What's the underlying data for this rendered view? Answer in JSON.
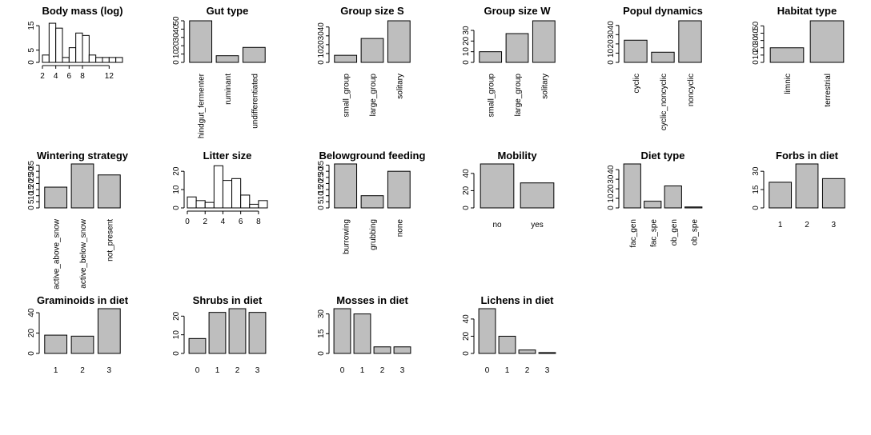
{
  "style": {
    "bar_fill": "#bebebe",
    "hist_fill": "#ffffff",
    "stroke": "#000000"
  },
  "chart_data": [
    {
      "type": "histogram",
      "title": "Body mass (log)",
      "xlim": [
        2,
        14
      ],
      "xticks": [
        2,
        4,
        6,
        8,
        12
      ],
      "ylim": [
        0,
        17
      ],
      "yticks": [
        0,
        5,
        15
      ],
      "bins": [
        2,
        3,
        4,
        5,
        6,
        7,
        8,
        9,
        10,
        11,
        12,
        13,
        14
      ],
      "values": [
        3,
        16,
        14,
        2,
        6,
        12,
        11,
        3,
        2,
        2,
        2,
        2
      ]
    },
    {
      "type": "bar",
      "title": "Gut type",
      "categories": [
        "hindgut_fermenter",
        "ruminant",
        "undifferentiated"
      ],
      "values": [
        50,
        8,
        18
      ],
      "ylim": [
        0,
        50
      ],
      "yticks": [
        0,
        10,
        20,
        30,
        40,
        50
      ],
      "label_orient": "vertical"
    },
    {
      "type": "bar",
      "title": "Group size S",
      "categories": [
        "small_group",
        "large_group",
        "solitary"
      ],
      "values": [
        8,
        27,
        47
      ],
      "ylim": [
        0,
        47
      ],
      "yticks": [
        0,
        10,
        20,
        30,
        40
      ],
      "label_orient": "vertical"
    },
    {
      "type": "bar",
      "title": "Group size W",
      "categories": [
        "small_group",
        "large_group",
        "solitary"
      ],
      "values": [
        10,
        27,
        39
      ],
      "ylim": [
        0,
        39
      ],
      "yticks": [
        0,
        10,
        20,
        30
      ],
      "label_orient": "vertical"
    },
    {
      "type": "bar",
      "title": "Popul dynamics",
      "categories": [
        "cyclic",
        "cyclic_noncyclic",
        "noncyclic"
      ],
      "values": [
        24,
        11,
        45
      ],
      "ylim": [
        0,
        45
      ],
      "yticks": [
        0,
        10,
        20,
        30,
        40
      ],
      "label_orient": "vertical"
    },
    {
      "type": "bar",
      "title": "Habitat type",
      "categories": [
        "limnic",
        "terrestrial"
      ],
      "values": [
        20,
        57
      ],
      "ylim": [
        0,
        57
      ],
      "yticks": [
        0,
        10,
        20,
        30,
        40,
        50
      ],
      "label_orient": "vertical"
    },
    {
      "type": "bar",
      "title": "Wintering strategy",
      "categories": [
        "active_above_snow",
        "active_below_snow",
        "not_present"
      ],
      "values": [
        17,
        36,
        27
      ],
      "ylim": [
        0,
        36
      ],
      "yticks": [
        0,
        5,
        10,
        15,
        20,
        25,
        30,
        35
      ],
      "label_orient": "vertical"
    },
    {
      "type": "histogram",
      "title": "Litter size",
      "xlim": [
        0,
        9
      ],
      "xticks": [
        0,
        2,
        4,
        6,
        8
      ],
      "ylim": [
        0,
        24
      ],
      "yticks": [
        0,
        10,
        20
      ],
      "bins": [
        0,
        1,
        2,
        3,
        4,
        5,
        6,
        7,
        8,
        9
      ],
      "values": [
        6,
        4,
        3,
        23,
        15,
        16,
        7,
        2,
        4
      ]
    },
    {
      "type": "bar",
      "title": "Belowground feeding",
      "categories": [
        "burrowing",
        "grubbing",
        "none"
      ],
      "values": [
        36,
        10,
        30
      ],
      "ylim": [
        0,
        36
      ],
      "yticks": [
        0,
        5,
        10,
        15,
        20,
        25,
        30,
        35
      ],
      "label_orient": "vertical"
    },
    {
      "type": "bar",
      "title": "Mobility",
      "categories": [
        "no",
        "yes"
      ],
      "values": [
        51,
        29
      ],
      "ylim": [
        0,
        51
      ],
      "yticks": [
        0,
        20,
        40
      ],
      "label_orient": "horizontal"
    },
    {
      "type": "bar",
      "title": "Diet type",
      "categories": [
        "fac_gen",
        "fac_spe",
        "ob_gen",
        "ob_spe"
      ],
      "values": [
        46,
        7,
        23,
        1
      ],
      "ylim": [
        0,
        46
      ],
      "yticks": [
        0,
        10,
        20,
        30,
        40
      ],
      "label_orient": "vertical"
    },
    {
      "type": "bar",
      "title": "Forbs in diet",
      "categories": [
        "1",
        "2",
        "3"
      ],
      "values": [
        21,
        36,
        24
      ],
      "ylim": [
        0,
        36
      ],
      "yticks": [
        0,
        15,
        30
      ],
      "label_orient": "horizontal"
    },
    {
      "type": "bar",
      "title": "Graminoids in diet",
      "categories": [
        "1",
        "2",
        "3"
      ],
      "values": [
        18,
        17,
        44
      ],
      "ylim": [
        0,
        44
      ],
      "yticks": [
        0,
        20,
        40
      ],
      "label_orient": "horizontal"
    },
    {
      "type": "bar",
      "title": "Shrubs in diet",
      "categories": [
        "0",
        "1",
        "2",
        "3"
      ],
      "values": [
        8,
        22,
        24,
        22
      ],
      "ylim": [
        0,
        24
      ],
      "yticks": [
        0,
        10,
        20
      ],
      "label_orient": "horizontal"
    },
    {
      "type": "bar",
      "title": "Mosses in diet",
      "categories": [
        "0",
        "1",
        "2",
        "3"
      ],
      "values": [
        34,
        30,
        5,
        5
      ],
      "ylim": [
        0,
        34
      ],
      "yticks": [
        0,
        15,
        30
      ],
      "label_orient": "horizontal"
    },
    {
      "type": "bar",
      "title": "Lichens in diet",
      "categories": [
        "0",
        "1",
        "2",
        "3"
      ],
      "values": [
        52,
        20,
        4,
        1
      ],
      "ylim": [
        0,
        52
      ],
      "yticks": [
        0,
        20,
        40
      ],
      "label_orient": "horizontal"
    }
  ]
}
